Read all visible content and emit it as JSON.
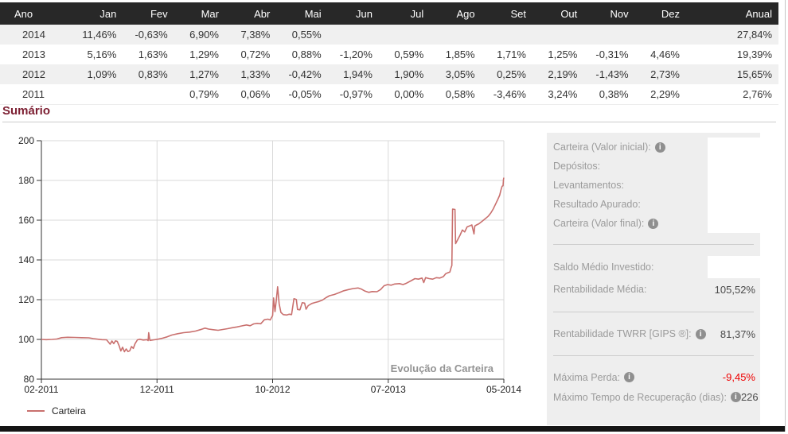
{
  "colors": {
    "heading": "#7d2033",
    "negative": "#e00000",
    "line": "#c9706e",
    "table_header_bg": "#282828",
    "panel_bg": "#eeeeee",
    "panel_label": "#9b9b9b"
  },
  "table": {
    "headers": [
      "Ano",
      "Jan",
      "Fev",
      "Mar",
      "Abr",
      "Mai",
      "Jun",
      "Jul",
      "Ago",
      "Set",
      "Out",
      "Nov",
      "Dez",
      "Anual"
    ],
    "rows": [
      {
        "cells": [
          "2014",
          "11,46%",
          "-0,63%",
          "6,90%",
          "7,38%",
          "0,55%",
          "",
          "",
          "",
          "",
          "",
          "",
          "",
          "27,84%"
        ]
      },
      {
        "cells": [
          "2013",
          "5,16%",
          "1,63%",
          "1,29%",
          "0,72%",
          "0,88%",
          "-1,20%",
          "0,59%",
          "1,85%",
          "1,71%",
          "1,25%",
          "-0,31%",
          "4,46%",
          "19,39%"
        ]
      },
      {
        "cells": [
          "2012",
          "1,09%",
          "0,83%",
          "1,27%",
          "1,33%",
          "-0,42%",
          "1,94%",
          "1,90%",
          "3,05%",
          "0,25%",
          "2,19%",
          "-1,43%",
          "2,73%",
          "15,65%"
        ]
      },
      {
        "cells": [
          "2011",
          "",
          "",
          "0,79%",
          "0,06%",
          "-0,05%",
          "-0,97%",
          "0,00%",
          "0,58%",
          "-3,46%",
          "3,24%",
          "0,38%",
          "2,29%",
          "2,76%"
        ]
      }
    ]
  },
  "summary": {
    "heading": "Sumário"
  },
  "chart_data": {
    "type": "line",
    "title": "Evolução da Carteira",
    "series_name": "Carteira",
    "legend": [
      "Carteira"
    ],
    "line_color": "#c9706e",
    "ylim": [
      80,
      200
    ],
    "y_ticks": [
      80,
      100,
      120,
      140,
      160,
      180,
      200
    ],
    "x_tick_labels": [
      "02-2011",
      "12-2011",
      "10-2012",
      "07-2013",
      "05-2014"
    ],
    "monthly": {
      "labels": [
        "02-2011",
        "03-2011",
        "04-2011",
        "05-2011",
        "06-2011",
        "07-2011",
        "08-2011",
        "09-2011",
        "10-2011",
        "11-2011",
        "12-2011",
        "01-2012",
        "02-2012",
        "03-2012",
        "04-2012",
        "05-2012",
        "06-2012",
        "07-2012",
        "08-2012",
        "09-2012",
        "10-2012",
        "11-2012",
        "12-2012",
        "01-2013",
        "02-2013",
        "03-2013",
        "04-2013",
        "05-2013",
        "06-2013",
        "07-2013",
        "08-2013",
        "09-2013",
        "10-2013",
        "11-2013",
        "12-2013",
        "01-2014",
        "02-2014",
        "03-2014",
        "04-2014",
        "05-2014"
      ],
      "values": [
        100,
        100.79,
        100.85,
        100.8,
        99.82,
        99.82,
        100.4,
        96.93,
        100.07,
        100.45,
        102.75,
        103.87,
        104.73,
        106.06,
        107.47,
        107.02,
        109.1,
        111.17,
        114.56,
        114.85,
        117.36,
        115.68,
        118.84,
        124.97,
        127.01,
        128.65,
        129.57,
        130.71,
        129.14,
        129.9,
        132.31,
        134.57,
        136.25,
        135.83,
        141.89,
        158.15,
        157.15,
        168.0,
        180.39,
        181.38
      ]
    },
    "path": [
      [
        0,
        100
      ],
      [
        0.4,
        99.9
      ],
      [
        0.9,
        100
      ],
      [
        1.3,
        100.2
      ],
      [
        1.7,
        100.9
      ],
      [
        2.2,
        101.1
      ],
      [
        2.8,
        101
      ],
      [
        3.4,
        100.9
      ],
      [
        4,
        100.8
      ],
      [
        4.4,
        100.4
      ],
      [
        4.8,
        100.1
      ],
      [
        5.1,
        99.9
      ],
      [
        5.5,
        99.8
      ],
      [
        5.8,
        97.6
      ],
      [
        5.95,
        99.2
      ],
      [
        6.1,
        97.9
      ],
      [
        6.25,
        99.3
      ],
      [
        6.4,
        99
      ],
      [
        6.55,
        96.9
      ],
      [
        6.7,
        94.2
      ],
      [
        6.85,
        96.1
      ],
      [
        7,
        93.8
      ],
      [
        7.15,
        95.2
      ],
      [
        7.3,
        93.9
      ],
      [
        7.45,
        94.3
      ],
      [
        7.6,
        96.4
      ],
      [
        7.75,
        95.5
      ],
      [
        7.9,
        97.9
      ],
      [
        8.1,
        99.8
      ],
      [
        8.3,
        100.1
      ],
      [
        8.6,
        99.7
      ],
      [
        8.9,
        99.9
      ],
      [
        9,
        99.4
      ],
      [
        9.05,
        103.4
      ],
      [
        9.15,
        99.5
      ],
      [
        9.5,
        99.8
      ],
      [
        9.8,
        100.1
      ],
      [
        10.2,
        100.6
      ],
      [
        10.6,
        101.3
      ],
      [
        11,
        102.2
      ],
      [
        11.5,
        102.9
      ],
      [
        12,
        103.4
      ],
      [
        12.5,
        103.7
      ],
      [
        13,
        104.2
      ],
      [
        13.5,
        105.1
      ],
      [
        13.8,
        105.7
      ],
      [
        14.1,
        105.2
      ],
      [
        14.5,
        104.9
      ],
      [
        14.9,
        104.6
      ],
      [
        15.3,
        105
      ],
      [
        15.7,
        105.4
      ],
      [
        16.1,
        105.9
      ],
      [
        16.5,
        106.3
      ],
      [
        16.9,
        106.8
      ],
      [
        17.3,
        107.3
      ],
      [
        17.6,
        106.9
      ],
      [
        17.9,
        107.8
      ],
      [
        18.2,
        108.1
      ],
      [
        18.5,
        107.9
      ],
      [
        18.8,
        109.9
      ],
      [
        19.1,
        110.2
      ],
      [
        19.3,
        109.8
      ],
      [
        19.5,
        112
      ],
      [
        19.58,
        120.9
      ],
      [
        19.7,
        114
      ],
      [
        19.82,
        120.4
      ],
      [
        19.92,
        126.5
      ],
      [
        20.05,
        118
      ],
      [
        20.2,
        113.6
      ],
      [
        20.4,
        112.5
      ],
      [
        20.7,
        112.3
      ],
      [
        20.9,
        112.7
      ],
      [
        21.1,
        112.5
      ],
      [
        21.3,
        120.5
      ],
      [
        21.5,
        120.1
      ],
      [
        21.6,
        115.1
      ],
      [
        21.8,
        114.9
      ],
      [
        22,
        118.5
      ],
      [
        22.2,
        118.3
      ],
      [
        22.32,
        115.2
      ],
      [
        22.5,
        117
      ],
      [
        22.8,
        118.1
      ],
      [
        23.1,
        118.6
      ],
      [
        23.4,
        119.1
      ],
      [
        23.7,
        119.8
      ],
      [
        24,
        121
      ],
      [
        24.3,
        122
      ],
      [
        24.7,
        122.6
      ],
      [
        25.1,
        123.5
      ],
      [
        25.5,
        124.5
      ],
      [
        25.9,
        125.1
      ],
      [
        26.3,
        125.6
      ],
      [
        26.7,
        125.9
      ],
      [
        27,
        125.3
      ],
      [
        27.3,
        124.3
      ],
      [
        27.6,
        123.7
      ],
      [
        27.9,
        124.1
      ],
      [
        28.3,
        124
      ],
      [
        28.6,
        125.1
      ],
      [
        28.9,
        127
      ],
      [
        29.2,
        127.6
      ],
      [
        29.5,
        127.3
      ],
      [
        29.8,
        127.9
      ],
      [
        30.2,
        128.1
      ],
      [
        30.5,
        127.6
      ],
      [
        30.8,
        128.3
      ],
      [
        31.2,
        129.6
      ],
      [
        31.5,
        130.6
      ],
      [
        31.8,
        130.3
      ],
      [
        32.1,
        130.9
      ],
      [
        32.25,
        128.6
      ],
      [
        32.4,
        131.1
      ],
      [
        32.7,
        130.6
      ],
      [
        33,
        130.3
      ],
      [
        33.3,
        131.1
      ],
      [
        33.6,
        130.9
      ],
      [
        33.9,
        131.6
      ],
      [
        34.1,
        133.1
      ],
      [
        34.3,
        133.6
      ],
      [
        34.45,
        133.9
      ],
      [
        34.55,
        136.1
      ],
      [
        34.62,
        137.2
      ],
      [
        34.68,
        165.6
      ],
      [
        34.88,
        165.4
      ],
      [
        34.93,
        148.2
      ],
      [
        35.1,
        150.1
      ],
      [
        35.3,
        152.4
      ],
      [
        35.5,
        155.1
      ],
      [
        35.7,
        154.1
      ],
      [
        35.9,
        156.6
      ],
      [
        36.1,
        157.1
      ],
      [
        36.3,
        157.6
      ],
      [
        36.48,
        153.1
      ],
      [
        36.55,
        157.1
      ],
      [
        36.7,
        157.6
      ],
      [
        36.9,
        158.2
      ],
      [
        37.2,
        159.6
      ],
      [
        37.5,
        161.1
      ],
      [
        37.7,
        162.1
      ],
      [
        37.9,
        163.6
      ],
      [
        38.1,
        165.6
      ],
      [
        38.3,
        168.1
      ],
      [
        38.5,
        170.6
      ],
      [
        38.65,
        172.6
      ],
      [
        38.75,
        175.1
      ],
      [
        38.85,
        177.1
      ],
      [
        38.93,
        177.3
      ],
      [
        38.97,
        180.6
      ],
      [
        39,
        181.4
      ]
    ]
  },
  "panel": {
    "groups": [
      {
        "rows": [
          {
            "label": "Carteira (Valor inicial):",
            "info": true,
            "value": "",
            "boxed": true
          },
          {
            "label": "Depósitos:",
            "info": false,
            "value": "",
            "boxed": true
          },
          {
            "label": "Levantamentos:",
            "info": false,
            "value": "",
            "boxed": true
          },
          {
            "label": "Resultado Apurado:",
            "info": false,
            "value": "",
            "boxed": true
          },
          {
            "label": "Carteira (Valor final):",
            "info": true,
            "value": "",
            "boxed": true
          }
        ]
      },
      {
        "rows": [
          {
            "label": "Saldo Médio Investido:",
            "info": false,
            "value": "",
            "boxed": true
          },
          {
            "label": "Rentabilidade Média:",
            "info": false,
            "value": "105,52%"
          }
        ]
      },
      {
        "rows": [
          {
            "label": "Rentabilidade TWRR [GIPS ®]:",
            "info": true,
            "value": "81,37%"
          }
        ]
      },
      {
        "rows": [
          {
            "label": "Máxima Perda:",
            "info": true,
            "value": "-9,45%",
            "negative": true
          },
          {
            "label": "Máximo Tempo de Recuperação (dias):",
            "info": true,
            "value": "226"
          }
        ]
      }
    ]
  }
}
